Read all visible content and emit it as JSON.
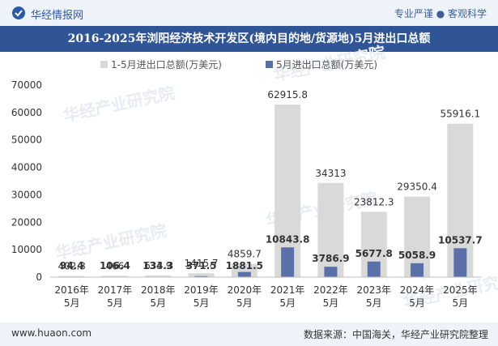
{
  "header": {
    "brand": "华经情报网",
    "tagline": "专业严谨 ● 客观科学"
  },
  "watermark": "华经产业研究院",
  "footer": {
    "website": "www.huaon.com",
    "source": "数据来源：中国海关，华经产业研究院整理"
  },
  "colors": {
    "series_total": "#d9d9d9",
    "series_may": "#5b6fa8",
    "title_bg": "#2f5597"
  },
  "chart_data": {
    "type": "bar",
    "title": "2016-2025年浏阳经济技术开发区(境内目的地/货源地)5月进出口总额",
    "categories": [
      "2016年5月",
      "2017年5月",
      "2018年5月",
      "2019年5月",
      "2020年5月",
      "2021年5月",
      "2022年5月",
      "2023年5月",
      "2024年5月",
      "2025年5月"
    ],
    "series": [
      {
        "name": "1-5月进出口总额(万美元)",
        "values": [
          402.3,
          466,
          633.9,
          1415.7,
          4859.7,
          62915.8,
          34313,
          23812.3,
          29350.4,
          55916.1
        ],
        "labels": [
          "402.3",
          "466",
          "633.9",
          "1415.7",
          "4859.7",
          "62915.8",
          "34313",
          "23812.3",
          "29350.4",
          "55916.1"
        ]
      },
      {
        "name": "5月进出口总额(万美元)",
        "values": [
          94.4,
          106.4,
          134.3,
          371.5,
          1881.5,
          10843.8,
          3786.9,
          5677.8,
          5058.9,
          10537.7
        ],
        "labels": [
          "94.4",
          "106.4",
          "134.3",
          "371.5",
          "1881.5",
          "10843.8",
          "3786.9",
          "5677.8",
          "5058.9",
          "10537.7"
        ]
      }
    ],
    "yticks": [
      "0",
      "10000",
      "20000",
      "30000",
      "40000",
      "50000",
      "60000",
      "70000"
    ],
    "ylim": [
      0,
      70000
    ],
    "legend_position": "top",
    "grid": false
  }
}
